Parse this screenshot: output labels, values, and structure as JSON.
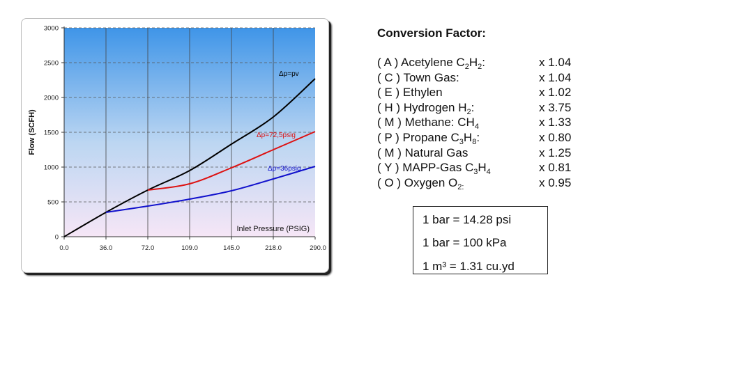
{
  "chart_data": {
    "type": "line",
    "xlabel": "Inlet Pressure (PSIG)",
    "ylabel": "Flow (SCFH)",
    "x_tick_labels": [
      "0.0",
      "36.0",
      "72.0",
      "109.0",
      "145.0",
      "218.0",
      "290.0"
    ],
    "y_ticks": [
      0,
      500,
      1000,
      1500,
      2000,
      2500,
      3000
    ],
    "ylim": [
      0,
      3000
    ],
    "grid": true,
    "series": [
      {
        "name": "Δp=pv",
        "color": "#000000",
        "x_index": [
          0,
          1,
          2,
          3,
          4,
          5,
          6
        ],
        "values": [
          0,
          350,
          670,
          950,
          1330,
          1720,
          2270
        ]
      },
      {
        "name": "Δp=72,5psig",
        "color": "#dd1111",
        "x_index": [
          2,
          3,
          4,
          5,
          6
        ],
        "values": [
          670,
          760,
          990,
          1250,
          1510
        ]
      },
      {
        "name": "Δp=36psig",
        "color": "#1111cc",
        "x_index": [
          1,
          2,
          3,
          4,
          5,
          6
        ],
        "values": [
          350,
          440,
          540,
          660,
          830,
          1010
        ]
      }
    ]
  },
  "conversion": {
    "title": "Conversion Factor:",
    "rows": [
      {
        "prefix": "( A ) Acetylene C",
        "s1": "2",
        "mid": "H",
        "s2": "2",
        "suffix": ":",
        "factor": "x 1.04"
      },
      {
        "prefix": "( C ) Town Gas:",
        "factor": "x 1.04"
      },
      {
        "prefix": "( E ) Ethylen",
        "factor": "x 1.02"
      },
      {
        "prefix": "( H ) Hydrogen H",
        "s1": "2",
        "suffix": ":",
        "factor": "x 3.75"
      },
      {
        "prefix": "( M ) Methane: CH",
        "s1": "4",
        "factor": "x 1.33"
      },
      {
        "prefix": "( P ) Propane C",
        "s1": "3",
        "mid": "H",
        "s2": "8",
        "suffix": ":",
        "factor": "x 0.80"
      },
      {
        "prefix": "( M ) Natural Gas",
        "factor": "x 1.25"
      },
      {
        "prefix": "( Y ) MAPP-Gas C",
        "s1": "3",
        "mid": "H",
        "s2": "4",
        "factor": "x 0.81"
      },
      {
        "prefix": "( O ) Oxygen O",
        "s1": "2:",
        "factor": "x 0.95"
      }
    ]
  },
  "units": {
    "line1": "1 bar = 14.28 psi",
    "line2": "1 bar = 100 kPa",
    "line3": "1 m³ =  1.31 cu.yd"
  }
}
